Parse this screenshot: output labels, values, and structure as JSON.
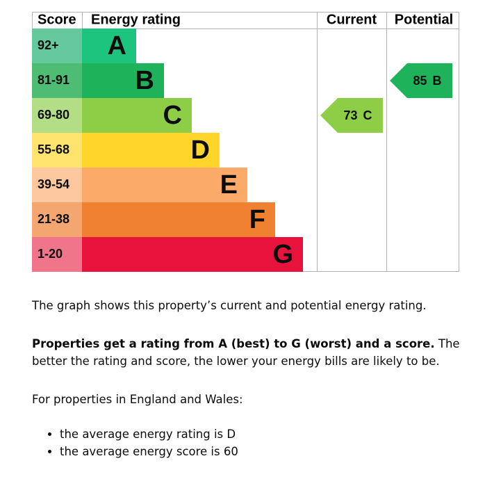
{
  "epc": {
    "headers": {
      "score": "Score",
      "rating": "Energy rating",
      "current": "Current",
      "potential": "Potential"
    },
    "bands": [
      {
        "score": "92+",
        "letter": "A",
        "color": "#1cc47e",
        "score_color": "#66c99d"
      },
      {
        "score": "81-91",
        "letter": "B",
        "color": "#1eb35a",
        "score_color": "#4ebc72"
      },
      {
        "score": "69-80",
        "letter": "C",
        "color": "#8dce46",
        "score_color": "#b4de86"
      },
      {
        "score": "55-68",
        "letter": "D",
        "color": "#ffd52b",
        "score_color": "#ffe36e"
      },
      {
        "score": "39-54",
        "letter": "E",
        "color": "#fbaa69",
        "score_color": "#fdc8a0"
      },
      {
        "score": "21-38",
        "letter": "F",
        "color": "#ef8131",
        "score_color": "#f4a671"
      },
      {
        "score": "1-20",
        "letter": "G",
        "color": "#e8133c",
        "score_color": "#f0748a"
      }
    ],
    "current": {
      "value": 73,
      "letter": "C"
    },
    "potential": {
      "value": 85,
      "letter": "B"
    }
  },
  "text": {
    "intro": "The graph shows this property’s current and potential energy rating.",
    "para_bold": "Properties get a rating from A (best) to G (worst) and a score.",
    "para_rest": " The better the rating and score, the lower your energy bills are likely to be.",
    "region": "For properties in England and Wales:",
    "bullets": [
      "the average energy rating is D",
      "the average energy score is 60"
    ]
  }
}
